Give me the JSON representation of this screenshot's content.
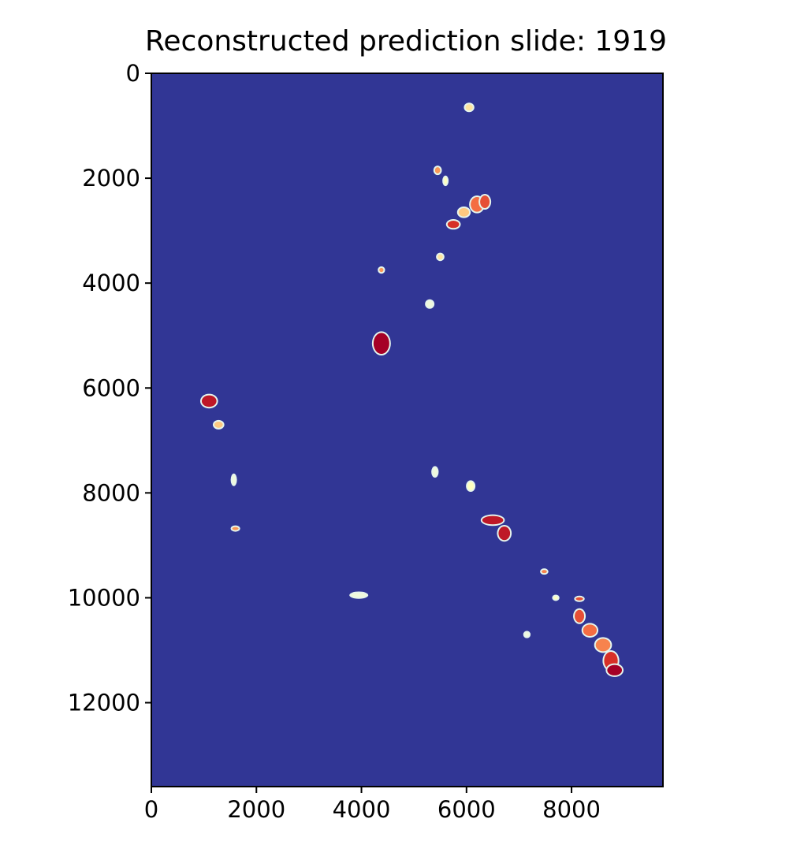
{
  "chart_data": {
    "type": "heatmap",
    "title": "Reconstructed prediction slide: 1919",
    "xlabel": "",
    "ylabel": "",
    "xlim": [
      0,
      9740
    ],
    "ylim": [
      13600,
      0
    ],
    "x_ticks": [
      0,
      2000,
      4000,
      6000,
      8000
    ],
    "y_ticks": [
      0,
      2000,
      4000,
      6000,
      8000,
      10000,
      12000
    ],
    "x_tick_labels": [
      "0",
      "2000",
      "4000",
      "6000",
      "8000"
    ],
    "y_tick_labels": [
      "0",
      "2000",
      "4000",
      "6000",
      "8000",
      "10000",
      "12000"
    ],
    "colormap": "RdYlBu_r",
    "background_color": "#313695",
    "grid": false,
    "regions": [
      {
        "x": 6050,
        "y": 650,
        "rx": 70,
        "ry": 60,
        "value": 0.55
      },
      {
        "x": 5450,
        "y": 1850,
        "rx": 50,
        "ry": 60,
        "value": 0.7
      },
      {
        "x": 5600,
        "y": 2050,
        "rx": 30,
        "ry": 70,
        "value": 0.5
      },
      {
        "x": 6200,
        "y": 2500,
        "rx": 120,
        "ry": 140,
        "value": 0.8
      },
      {
        "x": 6350,
        "y": 2450,
        "rx": 90,
        "ry": 120,
        "value": 0.85
      },
      {
        "x": 5950,
        "y": 2650,
        "rx": 100,
        "ry": 80,
        "value": 0.6
      },
      {
        "x": 5750,
        "y": 2880,
        "rx": 110,
        "ry": 70,
        "value": 0.9
      },
      {
        "x": 5500,
        "y": 3500,
        "rx": 50,
        "ry": 50,
        "value": 0.55
      },
      {
        "x": 4380,
        "y": 3750,
        "rx": 40,
        "ry": 40,
        "value": 0.7
      },
      {
        "x": 5300,
        "y": 4400,
        "rx": 60,
        "ry": 60,
        "value": 0.45
      },
      {
        "x": 4380,
        "y": 5150,
        "rx": 150,
        "ry": 200,
        "value": 1.0
      },
      {
        "x": 1100,
        "y": 6250,
        "rx": 140,
        "ry": 110,
        "value": 0.95
      },
      {
        "x": 1280,
        "y": 6700,
        "rx": 80,
        "ry": 60,
        "value": 0.6
      },
      {
        "x": 1570,
        "y": 7750,
        "rx": 30,
        "ry": 90,
        "value": 0.45
      },
      {
        "x": 1600,
        "y": 8680,
        "rx": 60,
        "ry": 30,
        "value": 0.7
      },
      {
        "x": 5400,
        "y": 7600,
        "rx": 40,
        "ry": 80,
        "value": 0.45
      },
      {
        "x": 6080,
        "y": 7870,
        "rx": 60,
        "ry": 80,
        "value": 0.5
      },
      {
        "x": 6500,
        "y": 8520,
        "rx": 200,
        "ry": 80,
        "value": 0.95
      },
      {
        "x": 6720,
        "y": 8770,
        "rx": 110,
        "ry": 130,
        "value": 0.95
      },
      {
        "x": 3950,
        "y": 9950,
        "rx": 150,
        "ry": 40,
        "value": 0.45
      },
      {
        "x": 7480,
        "y": 9500,
        "rx": 50,
        "ry": 30,
        "value": 0.75
      },
      {
        "x": 7700,
        "y": 10000,
        "rx": 40,
        "ry": 30,
        "value": 0.5
      },
      {
        "x": 8150,
        "y": 10020,
        "rx": 70,
        "ry": 30,
        "value": 0.85
      },
      {
        "x": 7150,
        "y": 10700,
        "rx": 40,
        "ry": 40,
        "value": 0.45
      },
      {
        "x": 8150,
        "y": 10350,
        "rx": 90,
        "ry": 120,
        "value": 0.85
      },
      {
        "x": 8350,
        "y": 10620,
        "rx": 130,
        "ry": 110,
        "value": 0.8
      },
      {
        "x": 8600,
        "y": 10900,
        "rx": 140,
        "ry": 120,
        "value": 0.75
      },
      {
        "x": 8750,
        "y": 11200,
        "rx": 130,
        "ry": 170,
        "value": 0.9
      },
      {
        "x": 8820,
        "y": 11380,
        "rx": 140,
        "ry": 100,
        "value": 1.0
      }
    ]
  }
}
